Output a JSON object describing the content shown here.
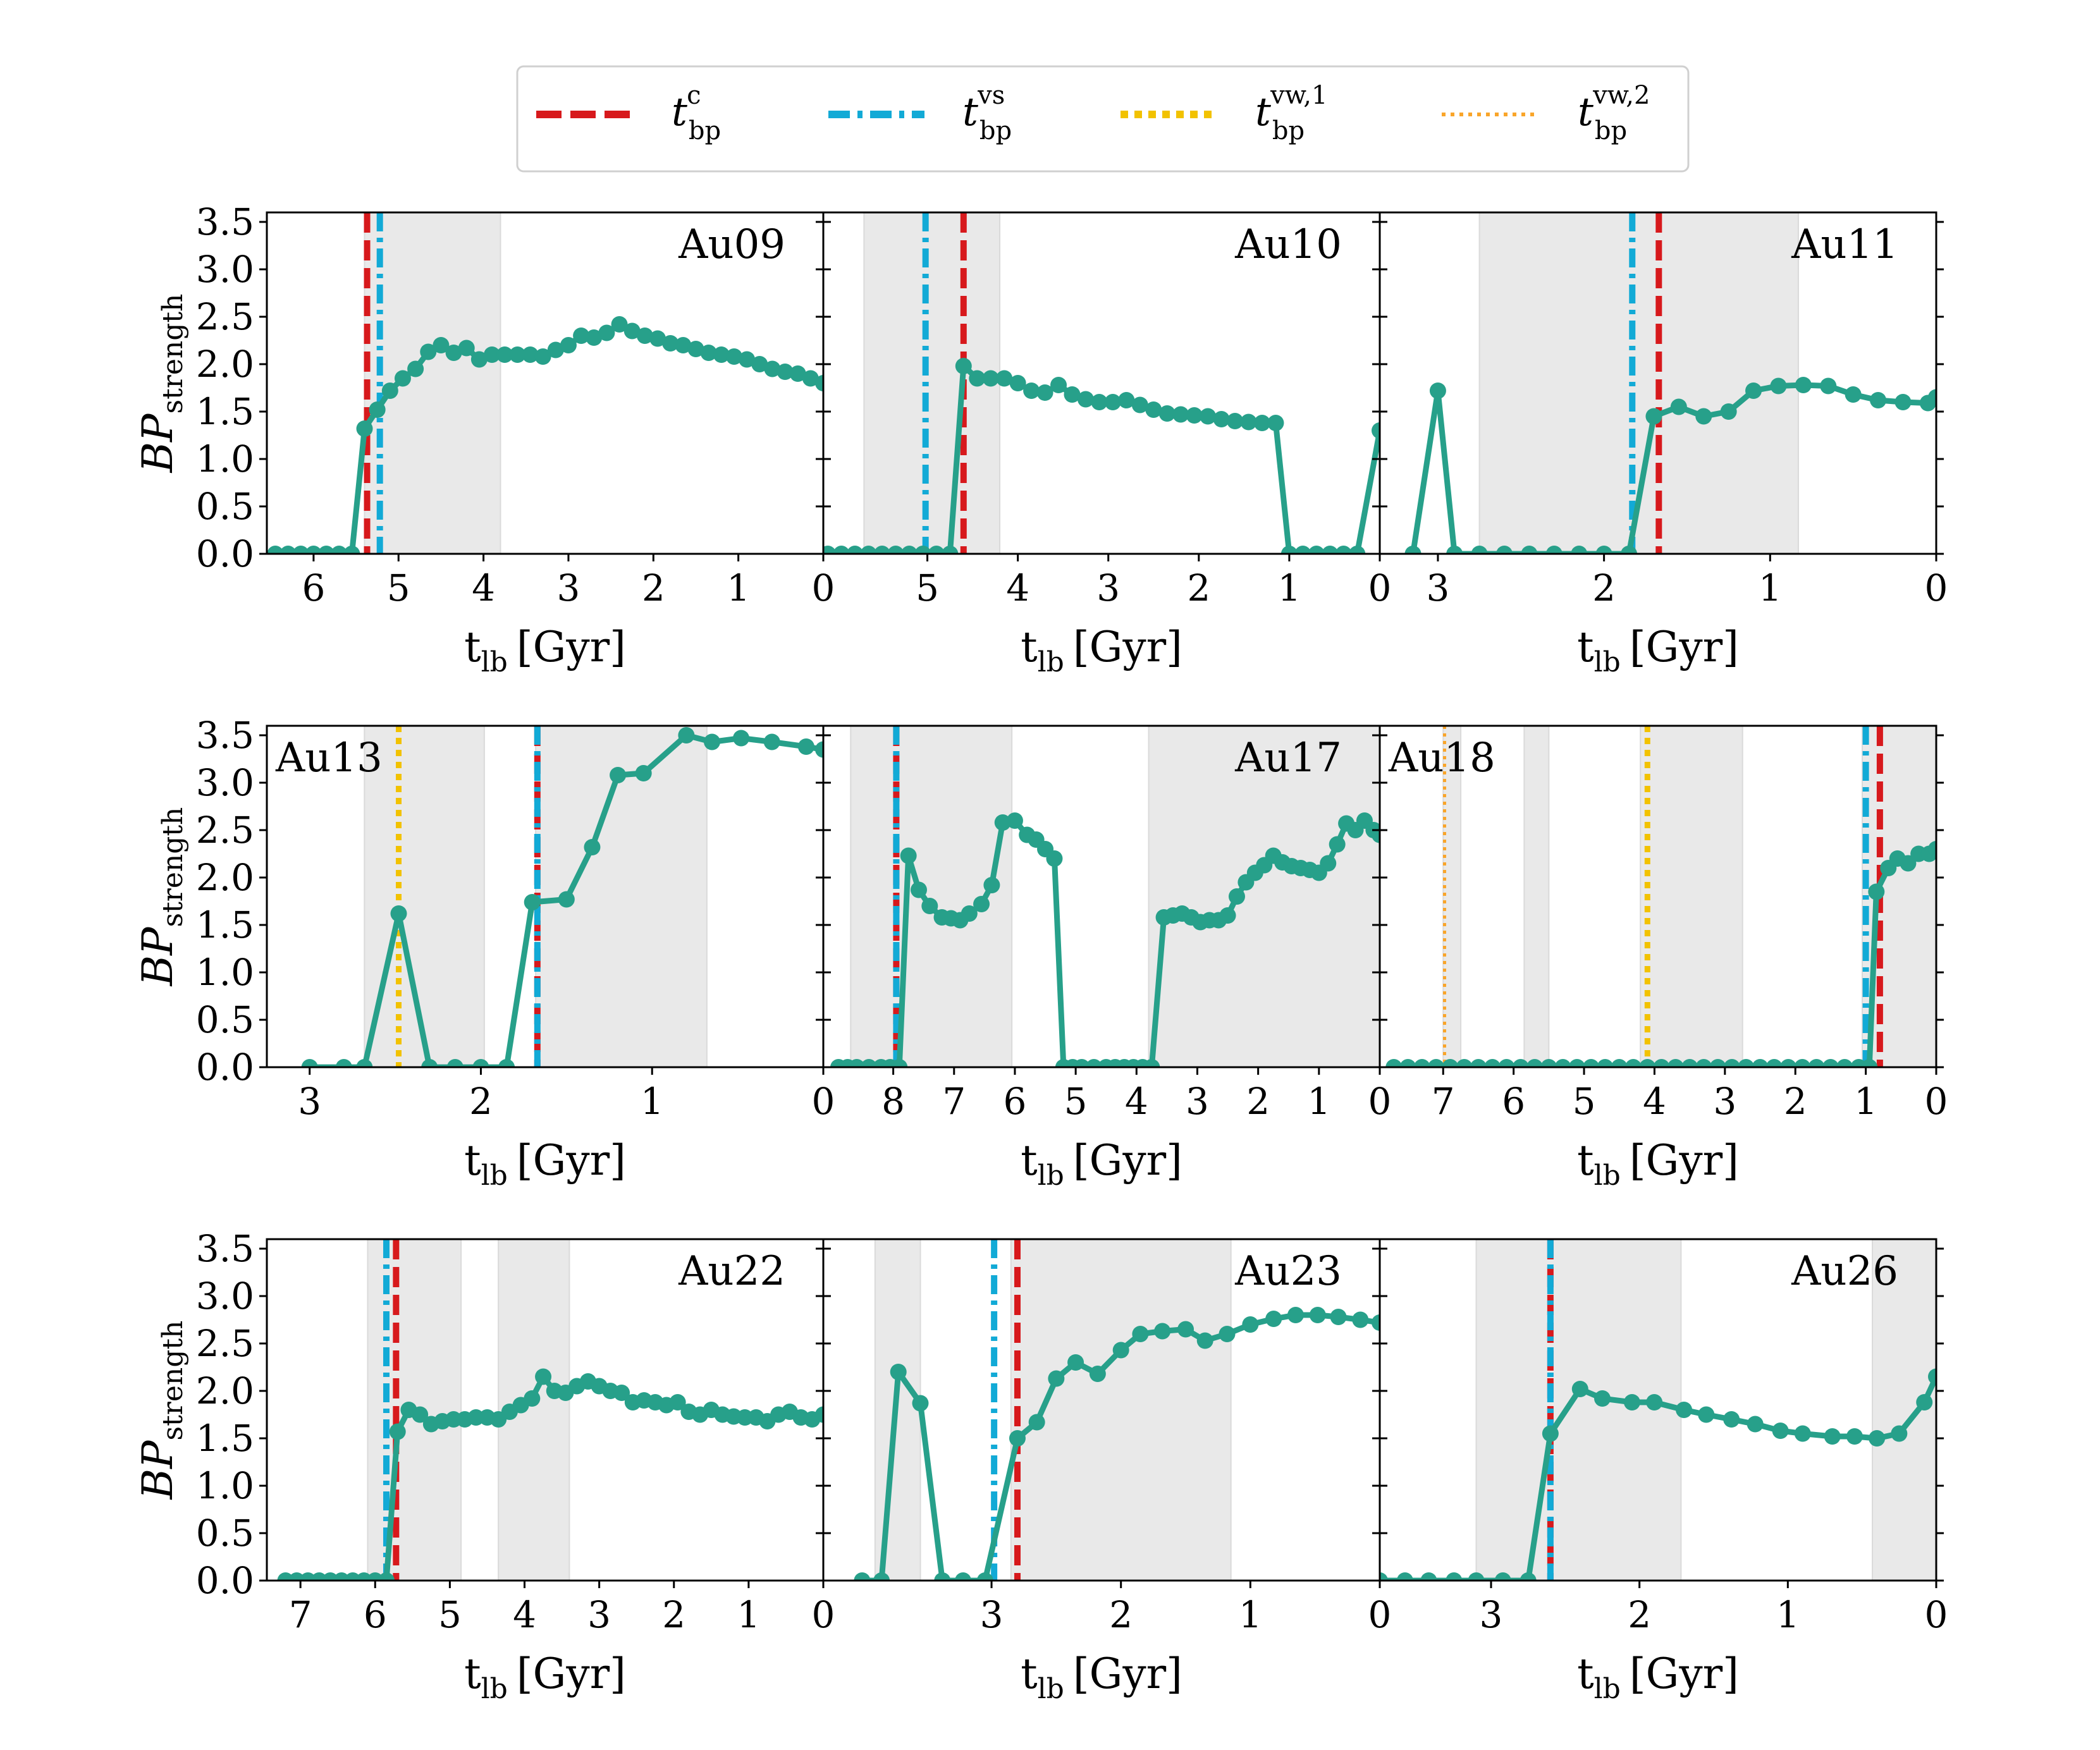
{
  "figure": {
    "colors": {
      "data": "#27a08a",
      "shade": "#e9e9e9",
      "tc": "#d7191c",
      "tvs": "#12aad6",
      "tvw1": "#f2c200",
      "tvw2": "#f9a52a"
    },
    "legend": [
      {
        "id": "tc",
        "base": "t",
        "sub": "bp",
        "sup": "c",
        "style": "dashed"
      },
      {
        "id": "tvs",
        "base": "t",
        "sub": "bp",
        "sup": "vs",
        "style": "dashdot"
      },
      {
        "id": "tvw1",
        "base": "t",
        "sub": "bp",
        "sup": "vw,1",
        "style": "dotted-thick"
      },
      {
        "id": "tvw2",
        "base": "t",
        "sub": "bp",
        "sup": "vw,2",
        "style": "dotted-thin"
      }
    ],
    "ylabel_main": "BP",
    "ylabel_sub": "strength",
    "xlabel_main": "t",
    "xlabel_sub": "lb",
    "xlabel_unit": "[Gyr]",
    "ytick_labels": [
      "0.0",
      "0.5",
      "1.0",
      "1.5",
      "2.0",
      "2.5",
      "3.0",
      "3.5"
    ]
  },
  "chart_data": [
    {
      "type": "line",
      "name": "Au09",
      "label_pos": "top-right",
      "xlim": [
        6.55,
        0
      ],
      "ylim": [
        0,
        3.6
      ],
      "xticks": [
        6,
        5,
        4,
        3,
        2,
        1,
        0
      ],
      "shaded": [
        [
          5.4,
          3.8
        ]
      ],
      "vlines": [
        {
          "kind": "tc",
          "x": 5.37
        },
        {
          "kind": "tvs",
          "x": 5.22
        }
      ],
      "x": [
        6.45,
        6.3,
        6.15,
        6.0,
        5.85,
        5.7,
        5.55,
        5.4,
        5.25,
        5.1,
        4.95,
        4.8,
        4.65,
        4.5,
        4.35,
        4.2,
        4.05,
        3.9,
        3.75,
        3.6,
        3.45,
        3.3,
        3.15,
        3.0,
        2.85,
        2.7,
        2.55,
        2.4,
        2.25,
        2.1,
        1.95,
        1.8,
        1.65,
        1.5,
        1.35,
        1.2,
        1.05,
        0.9,
        0.75,
        0.6,
        0.45,
        0.3,
        0.15,
        0.0
      ],
      "y": [
        0.0,
        0.0,
        0.0,
        0.0,
        0.0,
        0.0,
        0.0,
        1.32,
        1.52,
        1.72,
        1.85,
        1.95,
        2.13,
        2.2,
        2.12,
        2.17,
        2.05,
        2.1,
        2.1,
        2.1,
        2.1,
        2.08,
        2.15,
        2.2,
        2.3,
        2.28,
        2.33,
        2.42,
        2.35,
        2.3,
        2.27,
        2.22,
        2.2,
        2.16,
        2.12,
        2.1,
        2.08,
        2.05,
        2.0,
        1.95,
        1.92,
        1.9,
        1.85,
        1.8
      ]
    },
    {
      "type": "line",
      "name": "Au10",
      "label_pos": "top-right",
      "xlim": [
        6.15,
        0
      ],
      "ylim": [
        0,
        3.6
      ],
      "xticks": [
        5,
        4,
        3,
        2,
        1,
        0
      ],
      "shaded": [
        [
          5.7,
          4.2
        ]
      ],
      "vlines": [
        {
          "kind": "tvs",
          "x": 5.02
        },
        {
          "kind": "tc",
          "x": 4.6
        }
      ],
      "x": [
        6.1,
        5.95,
        5.8,
        5.65,
        5.5,
        5.35,
        5.2,
        5.05,
        4.9,
        4.75,
        4.6,
        4.45,
        4.3,
        4.15,
        4.0,
        3.85,
        3.7,
        3.55,
        3.4,
        3.25,
        3.1,
        2.95,
        2.8,
        2.65,
        2.5,
        2.35,
        2.2,
        2.05,
        1.9,
        1.75,
        1.6,
        1.45,
        1.3,
        1.15,
        1.0,
        0.85,
        0.7,
        0.55,
        0.4,
        0.25,
        0.0
      ],
      "y": [
        0.0,
        0.0,
        0.0,
        0.0,
        0.0,
        0.0,
        0.0,
        0.0,
        0.0,
        0.0,
        1.98,
        1.85,
        1.85,
        1.85,
        1.8,
        1.72,
        1.7,
        1.78,
        1.68,
        1.63,
        1.6,
        1.6,
        1.62,
        1.57,
        1.52,
        1.48,
        1.47,
        1.46,
        1.45,
        1.42,
        1.4,
        1.39,
        1.38,
        1.38,
        0.0,
        0.0,
        0.0,
        0.0,
        0.0,
        0.0,
        1.3
      ]
    },
    {
      "type": "line",
      "name": "Au11",
      "label_pos": "top-right",
      "xlim": [
        3.35,
        0
      ],
      "ylim": [
        0,
        3.6
      ],
      "xticks": [
        3,
        2,
        1,
        0
      ],
      "shaded": [
        [
          2.75,
          0.83
        ]
      ],
      "vlines": [
        {
          "kind": "tvs",
          "x": 1.83
        },
        {
          "kind": "tc",
          "x": 1.67
        }
      ],
      "x": [
        3.15,
        3.0,
        2.9,
        2.75,
        2.6,
        2.45,
        2.3,
        2.15,
        2.0,
        1.85,
        1.7,
        1.55,
        1.4,
        1.25,
        1.1,
        0.95,
        0.8,
        0.65,
        0.5,
        0.35,
        0.2,
        0.05,
        0.0
      ],
      "y": [
        0.0,
        1.72,
        0.0,
        0.0,
        0.0,
        0.0,
        0.0,
        0.0,
        0.0,
        0.0,
        1.45,
        1.55,
        1.45,
        1.5,
        1.72,
        1.77,
        1.78,
        1.77,
        1.68,
        1.62,
        1.6,
        1.59,
        1.65
      ]
    },
    {
      "type": "line",
      "name": "Au13",
      "label_pos": "top-left",
      "xlim": [
        3.25,
        0
      ],
      "ylim": [
        0,
        3.6
      ],
      "xticks": [
        3,
        2,
        1,
        0
      ],
      "shaded": [
        [
          2.68,
          1.98
        ],
        [
          1.68,
          0.68
        ]
      ],
      "vlines": [
        {
          "kind": "tvw1",
          "x": 2.48
        },
        {
          "kind": "tc",
          "x": 1.67
        },
        {
          "kind": "tvs",
          "x": 1.67
        }
      ],
      "x": [
        3.0,
        2.8,
        2.68,
        2.48,
        2.3,
        2.15,
        2.0,
        1.85,
        1.7,
        1.5,
        1.35,
        1.2,
        1.05,
        0.8,
        0.65,
        0.48,
        0.3,
        0.1,
        0.0
      ],
      "y": [
        0.0,
        0.0,
        0.0,
        1.62,
        0.0,
        0.0,
        0.0,
        0.0,
        1.74,
        1.77,
        2.32,
        3.08,
        3.1,
        3.5,
        3.43,
        3.47,
        3.43,
        3.38,
        3.35
      ]
    },
    {
      "type": "line",
      "name": "Au17",
      "label_pos": "top-right",
      "xlim": [
        9.15,
        0
      ],
      "ylim": [
        0,
        3.6
      ],
      "xticks": [
        8,
        7,
        6,
        5,
        4,
        3,
        2,
        1,
        0
      ],
      "shaded": [
        [
          8.7,
          6.05
        ],
        [
          3.8,
          0
        ]
      ],
      "vlines": [
        {
          "kind": "tc",
          "x": 7.95
        },
        {
          "kind": "tvs",
          "x": 7.95
        }
      ],
      "x": [
        8.9,
        8.75,
        8.6,
        8.4,
        8.2,
        8.05,
        7.9,
        7.75,
        7.58,
        7.4,
        7.2,
        7.05,
        6.9,
        6.75,
        6.55,
        6.38,
        6.2,
        6.0,
        5.8,
        5.65,
        5.5,
        5.35,
        5.2,
        5.05,
        4.9,
        4.7,
        4.5,
        4.35,
        4.2,
        4.05,
        3.9,
        3.75,
        3.55,
        3.4,
        3.25,
        3.1,
        2.95,
        2.8,
        2.65,
        2.5,
        2.35,
        2.2,
        2.05,
        1.9,
        1.75,
        1.6,
        1.45,
        1.3,
        1.15,
        1.0,
        0.85,
        0.7,
        0.55,
        0.4,
        0.25,
        0.1,
        0.0
      ],
      "y": [
        0.0,
        0.0,
        0.0,
        0.0,
        0.0,
        0.0,
        0.0,
        2.23,
        1.87,
        1.7,
        1.58,
        1.57,
        1.55,
        1.62,
        1.72,
        1.92,
        2.58,
        2.6,
        2.45,
        2.4,
        2.3,
        2.2,
        0.0,
        0.0,
        0.0,
        0.0,
        0.0,
        0.0,
        0.0,
        0.0,
        0.0,
        0.0,
        1.58,
        1.6,
        1.62,
        1.58,
        1.53,
        1.55,
        1.55,
        1.6,
        1.8,
        1.95,
        2.05,
        2.13,
        2.23,
        2.16,
        2.12,
        2.1,
        2.08,
        2.05,
        2.15,
        2.35,
        2.57,
        2.5,
        2.6,
        2.5,
        2.45
      ]
    },
    {
      "type": "line",
      "name": "Au18",
      "label_pos": "top-left",
      "xlim": [
        7.9,
        0
      ],
      "ylim": [
        0,
        3.6
      ],
      "xticks": [
        7,
        6,
        5,
        4,
        3,
        2,
        1,
        0
      ],
      "shaded": [
        [
          7.0,
          6.75
        ],
        [
          5.85,
          5.5
        ],
        [
          4.2,
          2.75
        ],
        [
          1.05,
          0
        ]
      ],
      "vlines": [
        {
          "kind": "tvw2",
          "x": 6.98
        },
        {
          "kind": "tvw1",
          "x": 4.1
        },
        {
          "kind": "tvs",
          "x": 1.0
        },
        {
          "kind": "tc",
          "x": 0.8
        }
      ],
      "x": [
        7.7,
        7.5,
        7.3,
        7.1,
        6.9,
        6.7,
        6.5,
        6.3,
        6.1,
        5.9,
        5.7,
        5.5,
        5.3,
        5.1,
        4.9,
        4.7,
        4.5,
        4.3,
        4.1,
        3.9,
        3.7,
        3.5,
        3.3,
        3.1,
        2.9,
        2.7,
        2.5,
        2.3,
        2.1,
        1.9,
        1.7,
        1.5,
        1.3,
        1.1,
        0.95,
        0.85,
        0.68,
        0.55,
        0.4,
        0.25,
        0.1,
        0.0
      ],
      "y": [
        0.0,
        0.0,
        0.0,
        0.0,
        0.0,
        0.0,
        0.0,
        0.0,
        0.0,
        0.0,
        0.0,
        0.0,
        0.0,
        0.0,
        0.0,
        0.0,
        0.0,
        0.0,
        0.0,
        0.0,
        0.0,
        0.0,
        0.0,
        0.0,
        0.0,
        0.0,
        0.0,
        0.0,
        0.0,
        0.0,
        0.0,
        0.0,
        0.0,
        0.0,
        0.0,
        1.85,
        2.1,
        2.2,
        2.15,
        2.25,
        2.25,
        2.3
      ]
    },
    {
      "type": "line",
      "name": "Au22",
      "label_pos": "top-right",
      "xlim": [
        7.45,
        0
      ],
      "ylim": [
        0,
        3.6
      ],
      "xticks": [
        7,
        6,
        5,
        4,
        3,
        2,
        1,
        0
      ],
      "shaded": [
        [
          6.1,
          4.85
        ],
        [
          4.35,
          3.4
        ]
      ],
      "vlines": [
        {
          "kind": "tvs",
          "x": 5.85
        },
        {
          "kind": "tc",
          "x": 5.72
        }
      ],
      "x": [
        7.2,
        7.05,
        6.9,
        6.75,
        6.6,
        6.45,
        6.3,
        6.15,
        6.0,
        5.85,
        5.7,
        5.55,
        5.4,
        5.25,
        5.1,
        4.95,
        4.8,
        4.65,
        4.5,
        4.35,
        4.2,
        4.05,
        3.9,
        3.75,
        3.6,
        3.45,
        3.3,
        3.15,
        3.0,
        2.85,
        2.7,
        2.55,
        2.4,
        2.25,
        2.1,
        1.95,
        1.8,
        1.65,
        1.5,
        1.35,
        1.2,
        1.05,
        0.9,
        0.75,
        0.6,
        0.45,
        0.3,
        0.15,
        0.0
      ],
      "y": [
        0.0,
        0.0,
        0.0,
        0.0,
        0.0,
        0.0,
        0.0,
        0.0,
        0.0,
        0.0,
        1.57,
        1.8,
        1.75,
        1.65,
        1.68,
        1.7,
        1.7,
        1.72,
        1.72,
        1.7,
        1.78,
        1.85,
        1.92,
        2.15,
        2.0,
        1.98,
        2.05,
        2.1,
        2.05,
        2.0,
        1.98,
        1.88,
        1.9,
        1.88,
        1.85,
        1.88,
        1.78,
        1.75,
        1.8,
        1.75,
        1.73,
        1.72,
        1.72,
        1.68,
        1.75,
        1.78,
        1.72,
        1.7,
        1.75
      ]
    },
    {
      "type": "line",
      "name": "Au23",
      "label_pos": "top-right",
      "xlim": [
        4.3,
        0
      ],
      "ylim": [
        0,
        3.6
      ],
      "xticks": [
        3,
        2,
        1,
        0
      ],
      "shaded": [
        [
          3.9,
          3.55
        ],
        [
          2.85,
          1.15
        ]
      ],
      "vlines": [
        {
          "kind": "tvs",
          "x": 2.98
        },
        {
          "kind": "tc",
          "x": 2.8
        }
      ],
      "x": [
        4.0,
        3.85,
        3.72,
        3.55,
        3.38,
        3.22,
        3.05,
        2.8,
        2.65,
        2.5,
        2.35,
        2.18,
        2.0,
        1.85,
        1.68,
        1.5,
        1.35,
        1.18,
        1.0,
        0.82,
        0.65,
        0.48,
        0.32,
        0.15,
        0.0
      ],
      "y": [
        0.0,
        0.0,
        2.2,
        1.87,
        0.0,
        0.0,
        0.0,
        1.5,
        1.67,
        2.13,
        2.3,
        2.18,
        2.43,
        2.6,
        2.63,
        2.65,
        2.53,
        2.6,
        2.7,
        2.76,
        2.8,
        2.8,
        2.78,
        2.75,
        2.72
      ]
    },
    {
      "type": "line",
      "name": "Au26",
      "label_pos": "top-right",
      "xlim": [
        3.75,
        0
      ],
      "ylim": [
        0,
        3.6
      ],
      "xticks": [
        3,
        2,
        1,
        0
      ],
      "shaded": [
        [
          3.1,
          1.72
        ],
        [
          0.43,
          0
        ]
      ],
      "vlines": [
        {
          "kind": "tc",
          "x": 2.6
        },
        {
          "kind": "tvs",
          "x": 2.6
        }
      ],
      "x": [
        3.75,
        3.58,
        3.42,
        3.25,
        3.1,
        2.92,
        2.75,
        2.6,
        2.4,
        2.25,
        2.05,
        1.9,
        1.7,
        1.55,
        1.38,
        1.22,
        1.05,
        0.9,
        0.7,
        0.55,
        0.4,
        0.25,
        0.08,
        0.0
      ],
      "y": [
        0.0,
        0.0,
        0.0,
        0.0,
        0.0,
        0.0,
        0.0,
        1.55,
        2.02,
        1.92,
        1.88,
        1.88,
        1.8,
        1.75,
        1.7,
        1.65,
        1.58,
        1.55,
        1.52,
        1.52,
        1.5,
        1.55,
        1.88,
        2.15
      ]
    }
  ]
}
